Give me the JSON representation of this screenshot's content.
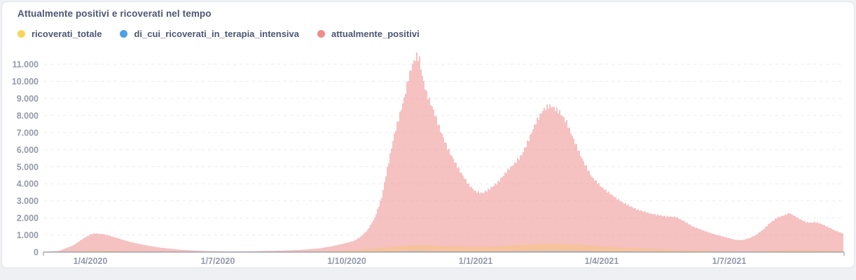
{
  "header": {
    "title": "Attualmente positivi e ricoverati nel tempo"
  },
  "legend": [
    {
      "label": "ricoverati_totale",
      "color": "#F9D45C"
    },
    {
      "label": "di_cui_ricoverati_in_terapia_intensiva",
      "color": "#509EE3"
    },
    {
      "label": "attualmente_positivi",
      "color": "#EF8C8C"
    }
  ],
  "colors": {
    "title_text": "#4c5773",
    "axis_text": "#949aab",
    "gridline": "#eaebf0",
    "axis_line": "#9fa3b3",
    "card_border": "#e2e4ea",
    "page_background": "#eff0f4"
  },
  "chart_data": {
    "type": "bar",
    "title": "Attualmente positivi e ricoverati nel tempo",
    "x_type": "daily dates",
    "x_start_label": "1/4/2020",
    "x_end_approx": "9/2021",
    "num_days": 571,
    "grid": "dashed horizontal",
    "legend_position": "top-left",
    "y_axis": {
      "min": 0,
      "max": 11000,
      "tick_step": 1000,
      "tick_labels": [
        "0",
        "1.000",
        "2.000",
        "3.000",
        "4.000",
        "5.000",
        "6.000",
        "7.000",
        "8.000",
        "9.000",
        "10.000",
        "11.000"
      ]
    },
    "x_axis": {
      "ticks": [
        {
          "label": "1/4/2020",
          "day": 33
        },
        {
          "label": "1/7/2020",
          "day": 124
        },
        {
          "label": "1/10/2020",
          "day": 216
        },
        {
          "label": "1/1/2021",
          "day": 308
        },
        {
          "label": "1/4/2021",
          "day": 398
        },
        {
          "label": "1/7/2021",
          "day": 489
        }
      ]
    },
    "series": [
      {
        "name": "attualmente_positivi",
        "legend_color": "#EF8C8C",
        "bar_color": "#ef9898",
        "peak_value": 11500,
        "keypoints": [
          [
            0,
            5
          ],
          [
            11,
            80
          ],
          [
            21,
            400
          ],
          [
            28,
            800
          ],
          [
            34,
            1060
          ],
          [
            36,
            1090
          ],
          [
            43,
            1040
          ],
          [
            51,
            850
          ],
          [
            61,
            600
          ],
          [
            71,
            420
          ],
          [
            83,
            260
          ],
          [
            98,
            130
          ],
          [
            113,
            70
          ],
          [
            122,
            55
          ],
          [
            133,
            40
          ],
          [
            146,
            45
          ],
          [
            158,
            70
          ],
          [
            171,
            90
          ],
          [
            183,
            130
          ],
          [
            196,
            210
          ],
          [
            206,
            350
          ],
          [
            213,
            480
          ],
          [
            221,
            650
          ],
          [
            226,
            900
          ],
          [
            231,
            1300
          ],
          [
            236,
            2000
          ],
          [
            241,
            3200
          ],
          [
            244,
            4500
          ],
          [
            247,
            5700
          ],
          [
            250,
            6900
          ],
          [
            253,
            7800
          ],
          [
            257,
            9000
          ],
          [
            260,
            10200
          ],
          [
            263,
            11000
          ],
          [
            266,
            11500
          ],
          [
            268,
            11300
          ],
          [
            270,
            10300
          ],
          [
            273,
            9300
          ],
          [
            278,
            8300
          ],
          [
            283,
            7100
          ],
          [
            288,
            6100
          ],
          [
            293,
            5300
          ],
          [
            298,
            4600
          ],
          [
            303,
            3950
          ],
          [
            308,
            3550
          ],
          [
            313,
            3450
          ],
          [
            318,
            3700
          ],
          [
            324,
            4100
          ],
          [
            331,
            4800
          ],
          [
            336,
            5200
          ],
          [
            341,
            5700
          ],
          [
            346,
            6600
          ],
          [
            351,
            7600
          ],
          [
            356,
            8300
          ],
          [
            360,
            8550
          ],
          [
            363,
            8500
          ],
          [
            368,
            8200
          ],
          [
            373,
            7600
          ],
          [
            378,
            6600
          ],
          [
            385,
            5300
          ],
          [
            391,
            4400
          ],
          [
            398,
            3800
          ],
          [
            406,
            3300
          ],
          [
            413,
            2900
          ],
          [
            423,
            2500
          ],
          [
            433,
            2250
          ],
          [
            443,
            2100
          ],
          [
            451,
            2050
          ],
          [
            456,
            1850
          ],
          [
            463,
            1500
          ],
          [
            471,
            1250
          ],
          [
            478,
            1050
          ],
          [
            486,
            880
          ],
          [
            493,
            720
          ],
          [
            498,
            700
          ],
          [
            503,
            800
          ],
          [
            508,
            1000
          ],
          [
            513,
            1300
          ],
          [
            518,
            1700
          ],
          [
            523,
            2000
          ],
          [
            528,
            2150
          ],
          [
            532,
            2280
          ],
          [
            536,
            2100
          ],
          [
            540,
            1900
          ],
          [
            544,
            1750
          ],
          [
            548,
            1720
          ],
          [
            550,
            1750
          ],
          [
            553,
            1700
          ],
          [
            556,
            1600
          ],
          [
            560,
            1450
          ],
          [
            565,
            1250
          ],
          [
            568,
            1150
          ],
          [
            570,
            1100
          ]
        ]
      },
      {
        "name": "ricoverati_totale",
        "legend_color": "#F9D45C",
        "bar_color": "#f2a966",
        "peak_value": 490,
        "keypoints": [
          [
            0,
            2
          ],
          [
            18,
            40
          ],
          [
            36,
            90
          ],
          [
            53,
            70
          ],
          [
            83,
            30
          ],
          [
            122,
            10
          ],
          [
            168,
            15
          ],
          [
            193,
            40
          ],
          [
            213,
            80
          ],
          [
            228,
            150
          ],
          [
            241,
            250
          ],
          [
            253,
            340
          ],
          [
            263,
            390
          ],
          [
            268,
            400
          ],
          [
            278,
            380
          ],
          [
            293,
            330
          ],
          [
            308,
            300
          ],
          [
            318,
            310
          ],
          [
            333,
            380
          ],
          [
            348,
            440
          ],
          [
            361,
            490
          ],
          [
            368,
            480
          ],
          [
            383,
            420
          ],
          [
            398,
            330
          ],
          [
            413,
            260
          ],
          [
            428,
            200
          ],
          [
            443,
            150
          ],
          [
            463,
            100
          ],
          [
            483,
            60
          ],
          [
            498,
            45
          ],
          [
            513,
            70
          ],
          [
            528,
            110
          ],
          [
            538,
            120
          ],
          [
            553,
            100
          ],
          [
            570,
            80
          ]
        ]
      },
      {
        "name": "di_cui_ricoverati_in_terapia_intensiva",
        "legend_color": "#509EE3",
        "bar_color": "#86a4cf",
        "peak_value": 60,
        "keypoints": [
          [
            0,
            0
          ],
          [
            36,
            15
          ],
          [
            122,
            2
          ],
          [
            213,
            10
          ],
          [
            243,
            30
          ],
          [
            263,
            50
          ],
          [
            278,
            45
          ],
          [
            308,
            35
          ],
          [
            333,
            45
          ],
          [
            361,
            60
          ],
          [
            383,
            50
          ],
          [
            408,
            35
          ],
          [
            443,
            20
          ],
          [
            483,
            8
          ],
          [
            518,
            12
          ],
          [
            533,
            18
          ],
          [
            570,
            12
          ]
        ]
      }
    ]
  }
}
